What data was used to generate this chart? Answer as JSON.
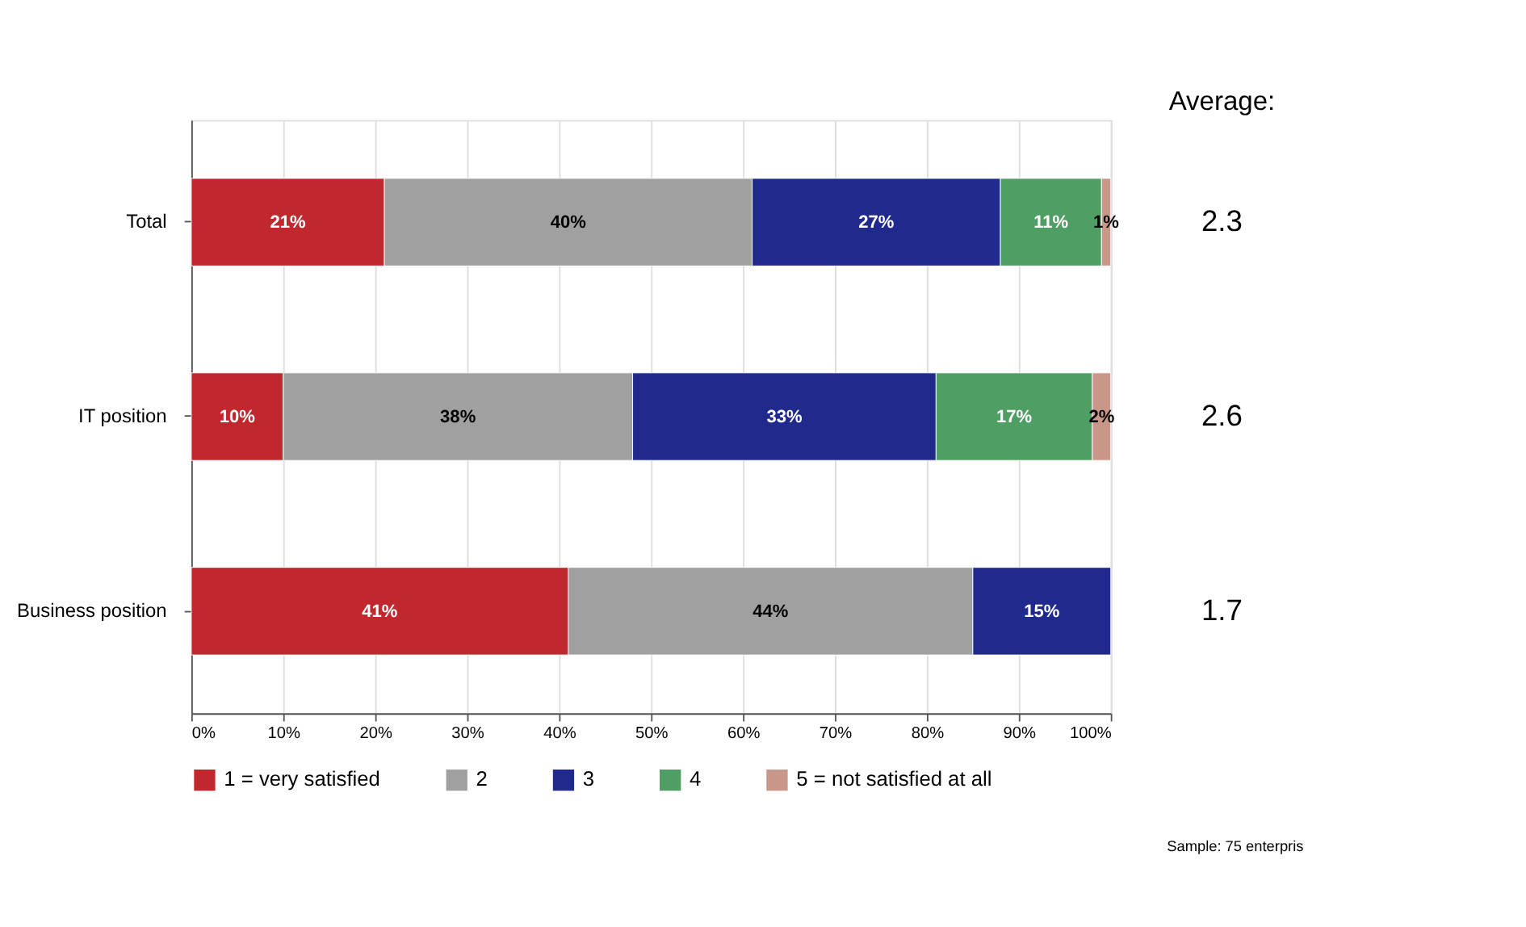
{
  "chart_data": {
    "type": "bar",
    "orientation": "horizontal",
    "stacked": true,
    "categories": [
      "Total",
      "IT position",
      "Business position"
    ],
    "series": [
      {
        "name": "1 = very satisfied",
        "color": "#c0282d",
        "values": [
          21,
          10,
          41
        ],
        "value_labels": [
          "21%",
          "10%",
          "41%"
        ]
      },
      {
        "name": "2",
        "color": "#a0a0a0",
        "values": [
          40,
          38,
          44
        ],
        "value_labels": [
          "40%",
          "38%",
          "44%"
        ]
      },
      {
        "name": "3",
        "color": "#1f2a8c",
        "values": [
          27,
          33,
          15
        ],
        "value_labels": [
          "27%",
          "33%",
          "15%"
        ]
      },
      {
        "name": "4",
        "color": "#4f9e63",
        "values": [
          11,
          17,
          null
        ],
        "value_labels": [
          "11%",
          "17%",
          null
        ]
      },
      {
        "name": "5 = not satisfied at all",
        "color": "#c9968a",
        "values": [
          1,
          2,
          null
        ],
        "value_labels": [
          "1%",
          "2%",
          null
        ]
      }
    ],
    "xlim": [
      0,
      100
    ],
    "xticks": [
      {
        "value": 0,
        "label": "0%"
      },
      {
        "value": 10,
        "label": "10%"
      },
      {
        "value": 20,
        "label": "20%"
      },
      {
        "value": 30,
        "label": "30%"
      },
      {
        "value": 40,
        "label": "40%"
      },
      {
        "value": 50,
        "label": "50%"
      },
      {
        "value": 60,
        "label": "60%"
      },
      {
        "value": 70,
        "label": "70%"
      },
      {
        "value": 80,
        "label": "80%"
      },
      {
        "value": 90,
        "label": "90%"
      },
      {
        "value": 100,
        "label": "100%"
      }
    ],
    "grid": "x",
    "legend": "bottom",
    "annotations": [
      "Average:",
      "2.3",
      "2.6",
      "1.7",
      "Sample: 75 enterpris"
    ]
  }
}
